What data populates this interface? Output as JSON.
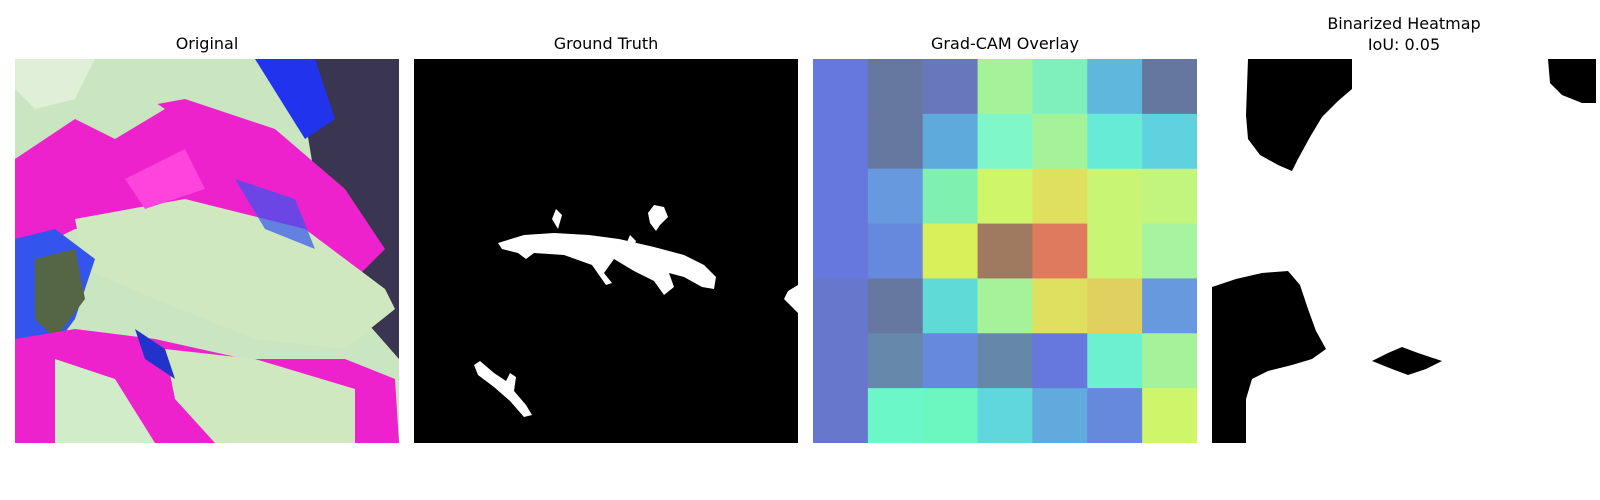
{
  "panels": [
    {
      "title": "Original"
    },
    {
      "title": "Ground Truth"
    },
    {
      "title": "Grad-CAM Overlay"
    },
    {
      "title": "Binarized Heatmap",
      "subtitle": "IoU: 0.05"
    }
  ],
  "gradcam": {
    "rows": 7,
    "cols": 7,
    "colors": [
      [
        "#6677dd",
        "#6677a0",
        "#6677bb",
        "#a5f398",
        "#7ff0bc",
        "#5fb7dd",
        "#66779f"
      ],
      [
        "#6677dd",
        "#6677a0",
        "#5faadd",
        "#7ff7c9",
        "#a5f398",
        "#66ecd6",
        "#5fd2e0"
      ],
      [
        "#6677dd",
        "#6699dd",
        "#7ff0b0",
        "#cff56a",
        "#e0e060",
        "#c8f573",
        "#c1f57d"
      ],
      [
        "#6677dd",
        "#6688dd",
        "#d9f05a",
        "#a07a60",
        "#e07a5c",
        "#c8f573",
        "#a6f3a0"
      ],
      [
        "#6677cc",
        "#6677a0",
        "#60dad6",
        "#a5f398",
        "#e0e060",
        "#e0d060",
        "#6699dd"
      ],
      [
        "#6677cc",
        "#6688aa",
        "#6688dd",
        "#6688a8",
        "#6677dd",
        "#6cf0d0",
        "#a5f398"
      ],
      [
        "#6677cc",
        "#6cf7c9",
        "#6cf7c0",
        "#60d6dd",
        "#60aadd",
        "#6688dd",
        "#cff56a"
      ]
    ]
  }
}
